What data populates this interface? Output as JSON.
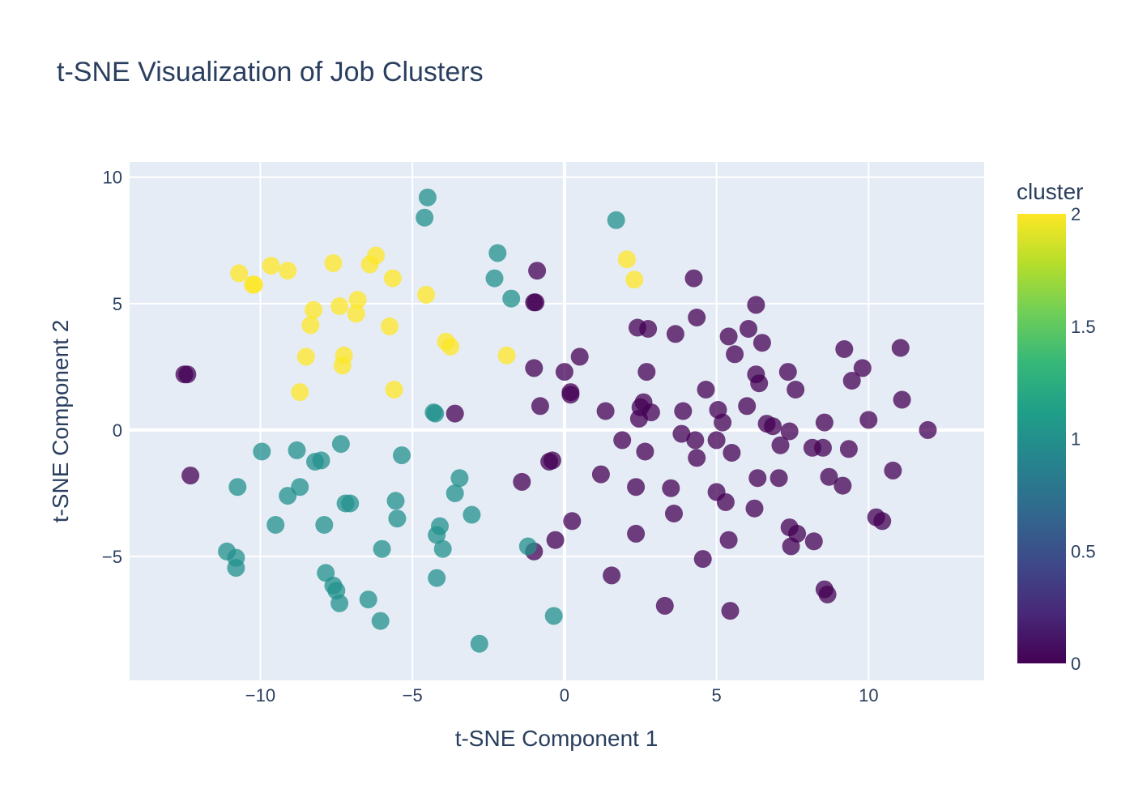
{
  "chart_data": {
    "type": "scatter",
    "title": "t-SNE Visualization of Job Clusters",
    "xlabel": "t-SNE Component 1",
    "ylabel": "t-SNE Component 2",
    "xlim": [
      -14.3,
      13.8
    ],
    "ylim": [
      -9.9,
      10.6
    ],
    "x_ticks": [
      -10,
      -5,
      0,
      5,
      10
    ],
    "x_tick_labels": [
      "−10",
      "−5",
      "0",
      "5",
      "10"
    ],
    "y_ticks": [
      -5,
      0,
      5,
      10
    ],
    "y_tick_labels": [
      "−5",
      "0",
      "5",
      "10"
    ],
    "grid": true,
    "colorscale": "Viridis",
    "colorscale_stops": [
      "#440154",
      "#482878",
      "#3e4989",
      "#31688e",
      "#26828e",
      "#1f9e89",
      "#35b779",
      "#6ece58",
      "#b5de2b",
      "#fde725"
    ],
    "colorbar": {
      "title": "cluster",
      "min": 0,
      "max": 2,
      "ticks": [
        0,
        0.5,
        1,
        1.5,
        2
      ],
      "tick_labels": [
        "0",
        "0.5",
        "1",
        "1.5",
        "2"
      ]
    },
    "marker_opacity": 0.75,
    "series": [
      {
        "cluster": 0,
        "color": "#440154",
        "points": [
          [
            -12.5,
            2.2
          ],
          [
            -12.4,
            2.2
          ],
          [
            -12.3,
            -1.8
          ],
          [
            -3.6,
            0.65
          ],
          [
            -1.4,
            -2.05
          ],
          [
            -1.0,
            2.45
          ],
          [
            -1.0,
            5.05
          ],
          [
            -0.95,
            5.05
          ],
          [
            -0.9,
            6.3
          ],
          [
            -0.8,
            0.95
          ],
          [
            -0.5,
            -1.25
          ],
          [
            -0.4,
            -1.2
          ],
          [
            -0.3,
            -4.35
          ],
          [
            0.0,
            2.3
          ],
          [
            0.2,
            1.5
          ],
          [
            0.2,
            1.4
          ],
          [
            0.25,
            -3.6
          ],
          [
            0.5,
            2.9
          ],
          [
            -1.0,
            -4.8
          ],
          [
            1.2,
            -1.75
          ],
          [
            1.35,
            0.75
          ],
          [
            1.55,
            -5.75
          ],
          [
            1.9,
            -0.4
          ],
          [
            2.35,
            -2.25
          ],
          [
            2.35,
            -4.1
          ],
          [
            2.4,
            4.05
          ],
          [
            2.45,
            0.45
          ],
          [
            2.5,
            0.9
          ],
          [
            2.6,
            1.1
          ],
          [
            2.65,
            -0.85
          ],
          [
            2.7,
            2.3
          ],
          [
            2.75,
            4.0
          ],
          [
            2.85,
            0.7
          ],
          [
            3.3,
            -6.95
          ],
          [
            3.5,
            -2.3
          ],
          [
            3.6,
            -3.3
          ],
          [
            3.65,
            3.8
          ],
          [
            3.85,
            -0.15
          ],
          [
            3.9,
            0.75
          ],
          [
            4.25,
            6.0
          ],
          [
            4.3,
            -0.4
          ],
          [
            4.35,
            4.45
          ],
          [
            4.35,
            -1.1
          ],
          [
            4.55,
            -5.1
          ],
          [
            4.65,
            1.6
          ],
          [
            5.0,
            -0.4
          ],
          [
            5.0,
            -2.45
          ],
          [
            5.05,
            0.8
          ],
          [
            5.2,
            0.3
          ],
          [
            5.3,
            -2.85
          ],
          [
            5.4,
            -4.35
          ],
          [
            5.4,
            3.7
          ],
          [
            5.45,
            -7.15
          ],
          [
            5.5,
            -0.9
          ],
          [
            5.6,
            3.0
          ],
          [
            6.0,
            0.95
          ],
          [
            6.05,
            4.0
          ],
          [
            6.25,
            -3.1
          ],
          [
            6.3,
            2.2
          ],
          [
            6.3,
            4.95
          ],
          [
            6.35,
            -1.9
          ],
          [
            6.4,
            1.85
          ],
          [
            6.5,
            3.45
          ],
          [
            6.65,
            0.25
          ],
          [
            6.85,
            0.15
          ],
          [
            7.05,
            -1.9
          ],
          [
            7.1,
            -0.6
          ],
          [
            7.35,
            2.3
          ],
          [
            7.4,
            -0.05
          ],
          [
            7.4,
            -3.85
          ],
          [
            7.45,
            -4.6
          ],
          [
            7.6,
            1.6
          ],
          [
            7.65,
            -4.1
          ],
          [
            8.15,
            -0.7
          ],
          [
            8.2,
            -4.4
          ],
          [
            8.5,
            -0.7
          ],
          [
            8.55,
            0.3
          ],
          [
            8.55,
            -6.3
          ],
          [
            8.65,
            -6.5
          ],
          [
            8.7,
            -1.85
          ],
          [
            9.15,
            -2.2
          ],
          [
            9.2,
            3.2
          ],
          [
            9.35,
            -0.75
          ],
          [
            9.45,
            1.95
          ],
          [
            9.8,
            2.45
          ],
          [
            10.0,
            0.4
          ],
          [
            10.25,
            -3.45
          ],
          [
            10.45,
            -3.6
          ],
          [
            10.8,
            -1.6
          ],
          [
            11.05,
            3.25
          ],
          [
            11.1,
            1.2
          ],
          [
            11.95,
            0.0
          ]
        ]
      },
      {
        "cluster": 1,
        "color": "#21918c",
        "points": [
          [
            -11.1,
            -4.8
          ],
          [
            -10.8,
            -5.05
          ],
          [
            -10.8,
            -5.45
          ],
          [
            -10.75,
            -2.25
          ],
          [
            -9.95,
            -0.85
          ],
          [
            -9.5,
            -3.75
          ],
          [
            -9.1,
            -2.6
          ],
          [
            -8.8,
            -0.8
          ],
          [
            -8.7,
            -2.25
          ],
          [
            -8.2,
            -1.25
          ],
          [
            -8.0,
            -1.2
          ],
          [
            -7.9,
            -3.75
          ],
          [
            -7.85,
            -5.65
          ],
          [
            -7.6,
            -6.15
          ],
          [
            -7.5,
            -6.35
          ],
          [
            -7.4,
            -6.85
          ],
          [
            -7.35,
            -0.55
          ],
          [
            -7.2,
            -2.9
          ],
          [
            -7.05,
            -2.9
          ],
          [
            -6.45,
            -6.7
          ],
          [
            -6.05,
            -7.55
          ],
          [
            -6.0,
            -4.7
          ],
          [
            -5.55,
            -2.8
          ],
          [
            -5.5,
            -3.5
          ],
          [
            -5.35,
            -1.0
          ],
          [
            -4.6,
            8.4
          ],
          [
            -4.5,
            9.2
          ],
          [
            -4.3,
            0.7
          ],
          [
            -4.25,
            0.65
          ],
          [
            -4.2,
            -5.85
          ],
          [
            -4.2,
            -4.15
          ],
          [
            -4.1,
            -3.8
          ],
          [
            -4.0,
            -4.7
          ],
          [
            -3.6,
            -2.5
          ],
          [
            -3.45,
            -1.9
          ],
          [
            -3.05,
            -3.35
          ],
          [
            -2.8,
            -8.45
          ],
          [
            -2.3,
            6.0
          ],
          [
            -2.2,
            7.0
          ],
          [
            -1.75,
            5.2
          ],
          [
            -1.2,
            -4.6
          ],
          [
            -0.35,
            -7.35
          ],
          [
            1.7,
            8.3
          ]
        ]
      },
      {
        "cluster": 2,
        "color": "#fde725",
        "points": [
          [
            -10.7,
            6.2
          ],
          [
            -10.25,
            5.75
          ],
          [
            -10.2,
            5.75
          ],
          [
            -9.65,
            6.5
          ],
          [
            -9.1,
            6.3
          ],
          [
            -8.7,
            1.5
          ],
          [
            -8.5,
            2.9
          ],
          [
            -8.35,
            4.15
          ],
          [
            -8.25,
            4.75
          ],
          [
            -7.6,
            6.6
          ],
          [
            -7.4,
            4.9
          ],
          [
            -7.3,
            2.55
          ],
          [
            -7.25,
            2.95
          ],
          [
            -6.85,
            4.6
          ],
          [
            -6.8,
            5.15
          ],
          [
            -6.4,
            6.55
          ],
          [
            -6.2,
            6.9
          ],
          [
            -5.75,
            4.1
          ],
          [
            -5.65,
            6.0
          ],
          [
            -5.6,
            1.6
          ],
          [
            -4.55,
            5.35
          ],
          [
            -3.9,
            3.5
          ],
          [
            -3.75,
            3.3
          ],
          [
            -1.9,
            2.95
          ],
          [
            2.05,
            6.75
          ],
          [
            2.3,
            5.95
          ]
        ]
      }
    ]
  }
}
